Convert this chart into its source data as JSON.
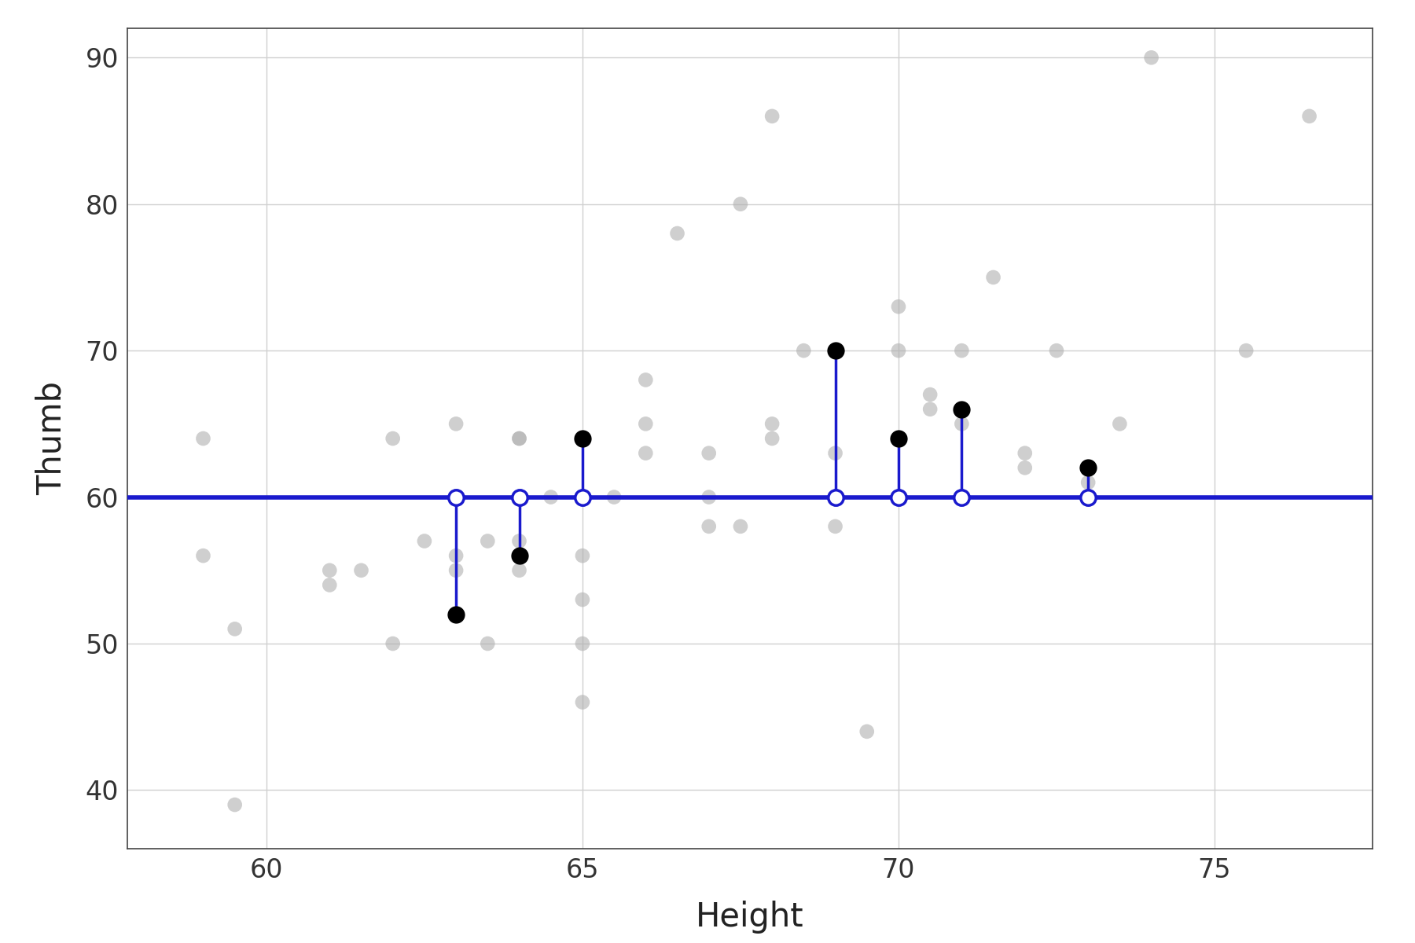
{
  "title": "",
  "xlabel": "Height",
  "ylabel": "Thumb",
  "xlim": [
    57.8,
    77.5
  ],
  "ylim": [
    36,
    92
  ],
  "xticks": [
    60,
    65,
    70,
    75
  ],
  "yticks": [
    40,
    50,
    60,
    70,
    80,
    90
  ],
  "model_y": 60.0,
  "background_color": "#ffffff",
  "grid_color": "#d0d0d0",
  "scatter_color": "#b0b0b0",
  "highlighted_color": "#000000",
  "line_color": "#1a1acd",
  "scatter_alpha": 0.6,
  "scatter_size": 180,
  "highlighted_size": 200,
  "all_points": [
    [
      59.0,
      56
    ],
    [
      59.0,
      64
    ],
    [
      59.5,
      51
    ],
    [
      59.5,
      39
    ],
    [
      61.0,
      55
    ],
    [
      61.0,
      54
    ],
    [
      61.5,
      55
    ],
    [
      62.0,
      50
    ],
    [
      62.0,
      64
    ],
    [
      62.5,
      57
    ],
    [
      63.0,
      52
    ],
    [
      63.0,
      56
    ],
    [
      63.0,
      55
    ],
    [
      63.0,
      65
    ],
    [
      63.5,
      50
    ],
    [
      63.5,
      57
    ],
    [
      64.0,
      55
    ],
    [
      64.0,
      57
    ],
    [
      64.0,
      64
    ],
    [
      64.0,
      64
    ],
    [
      64.5,
      60
    ],
    [
      65.0,
      50
    ],
    [
      65.0,
      46
    ],
    [
      65.0,
      56
    ],
    [
      65.0,
      53
    ],
    [
      65.5,
      60
    ],
    [
      66.0,
      63
    ],
    [
      66.0,
      65
    ],
    [
      66.0,
      68
    ],
    [
      66.5,
      78
    ],
    [
      67.0,
      58
    ],
    [
      67.0,
      60
    ],
    [
      67.0,
      63
    ],
    [
      67.5,
      80
    ],
    [
      67.5,
      58
    ],
    [
      68.0,
      64
    ],
    [
      68.0,
      65
    ],
    [
      68.0,
      86
    ],
    [
      68.5,
      70
    ],
    [
      69.0,
      60
    ],
    [
      69.0,
      63
    ],
    [
      69.0,
      58
    ],
    [
      69.5,
      44
    ],
    [
      70.0,
      73
    ],
    [
      70.0,
      70
    ],
    [
      70.5,
      66
    ],
    [
      70.5,
      67
    ],
    [
      71.0,
      65
    ],
    [
      71.0,
      70
    ],
    [
      71.5,
      75
    ],
    [
      72.0,
      62
    ],
    [
      72.0,
      63
    ],
    [
      72.5,
      70
    ],
    [
      73.0,
      62
    ],
    [
      73.0,
      61
    ],
    [
      73.5,
      65
    ],
    [
      74.0,
      90
    ],
    [
      75.5,
      70
    ],
    [
      76.5,
      86
    ]
  ],
  "highlighted_points": [
    [
      63.0,
      52
    ],
    [
      64.0,
      56
    ],
    [
      65.0,
      64
    ],
    [
      69.0,
      70
    ],
    [
      70.0,
      64
    ],
    [
      71.0,
      66
    ],
    [
      73.0,
      62
    ]
  ]
}
